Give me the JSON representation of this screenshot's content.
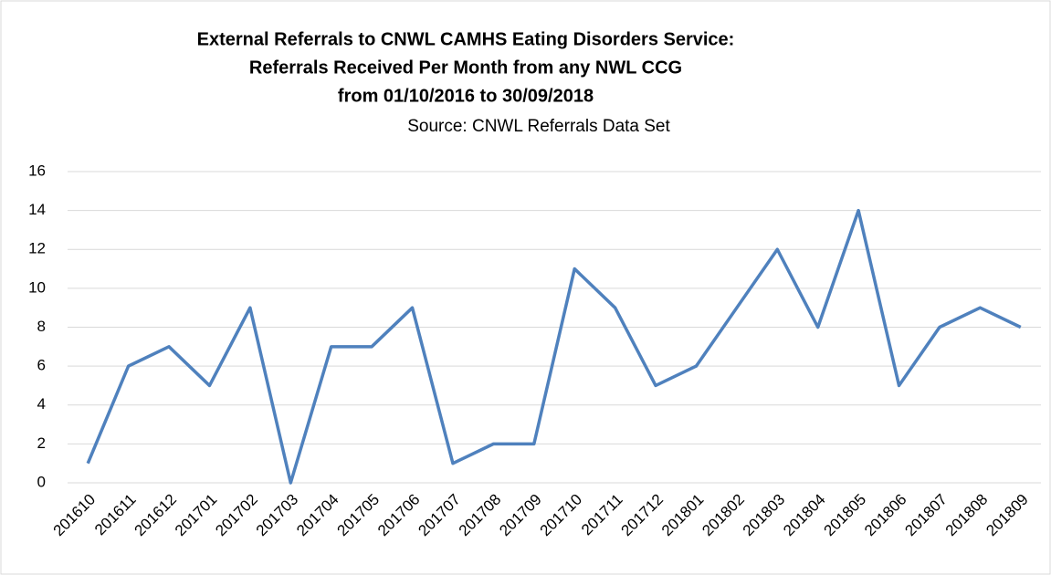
{
  "chart_data": {
    "type": "line",
    "title": [
      "External Referrals to CNWL CAMHS Eating Disorders Service:",
      "Referrals Received Per Month from any NWL CCG",
      "from 01/10/2016 to 30/09/2018"
    ],
    "subtitle": "Source: CNWL Referrals Data Set",
    "categories": [
      "201610",
      "201611",
      "201612",
      "201701",
      "201702",
      "201703",
      "201704",
      "201705",
      "201706",
      "201707",
      "201708",
      "201709",
      "201710",
      "201711",
      "201712",
      "201801",
      "201802",
      "201803",
      "201804",
      "201805",
      "201806",
      "201807",
      "201808",
      "201809"
    ],
    "series": [
      {
        "name": "Referrals",
        "color": "#4f81bd",
        "values": [
          1,
          6,
          7,
          5,
          9,
          0,
          7,
          7,
          9,
          1,
          2,
          2,
          11,
          9,
          5,
          6,
          9,
          12,
          8,
          14,
          5,
          8,
          9,
          8
        ]
      }
    ],
    "ylim": [
      0,
      16
    ],
    "yticks": [
      0,
      2,
      4,
      6,
      8,
      10,
      12,
      14,
      16
    ],
    "grid": true
  }
}
